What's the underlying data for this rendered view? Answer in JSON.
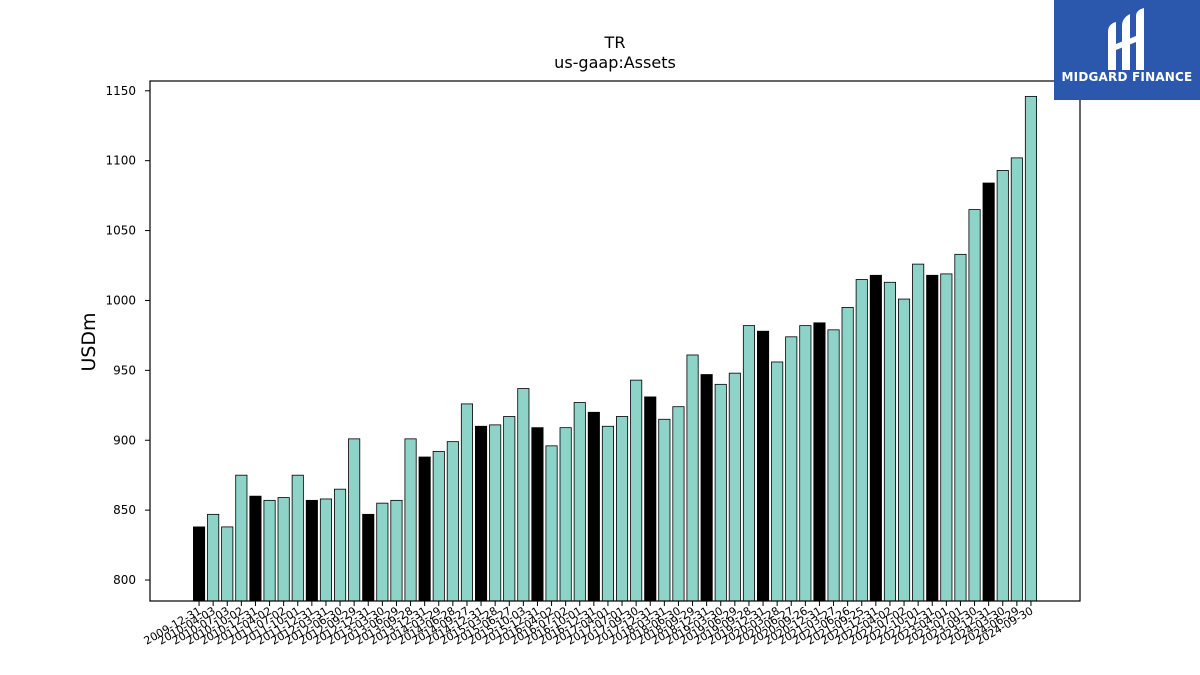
{
  "chart_data": {
    "type": "bar",
    "title": "TR",
    "subtitle": "us-gaap:Assets",
    "xlabel": "",
    "ylabel": "USDm",
    "ylim": [
      785,
      1157
    ],
    "yticks": [
      800,
      850,
      900,
      950,
      1000,
      1050,
      1100,
      1150
    ],
    "grid": false,
    "categories": [
      "2009-12-31",
      "2010-04-03",
      "2010-07-03",
      "2010-10-02",
      "2010-12-31",
      "2011-04-02",
      "2011-07-02",
      "2011-10-01",
      "2011-12-31",
      "2012-03-31",
      "2012-06-30",
      "2012-09-29",
      "2012-12-31",
      "2013-03-30",
      "2013-06-29",
      "2013-09-28",
      "2013-12-31",
      "2014-03-29",
      "2014-06-28",
      "2014-09-27",
      "2014-12-31",
      "2015-03-28",
      "2015-06-27",
      "2015-10-03",
      "2015-12-31",
      "2016-04-02",
      "2016-07-02",
      "2016-10-01",
      "2016-12-31",
      "2017-04-01",
      "2017-07-01",
      "2017-09-30",
      "2017-12-31",
      "2018-03-31",
      "2018-06-30",
      "2018-09-29",
      "2018-12-31",
      "2019-03-30",
      "2019-06-29",
      "2019-09-28",
      "2019-12-31",
      "2020-03-28",
      "2020-06-27",
      "2020-09-26",
      "2020-12-31",
      "2021-03-27",
      "2021-06-26",
      "2021-09-25",
      "2021-12-31",
      "2022-04-02",
      "2022-07-02",
      "2022-10-01",
      "2022-12-31",
      "2023-04-01",
      "2023-07-01",
      "2023-09-30",
      "2023-12-31",
      "2024-03-30",
      "2024-06-29",
      "2024-09-30"
    ],
    "tick_labels": [
      "2009-12-31",
      "2010-04-03",
      "2010-07-03",
      "2010-10-02",
      "2010-12-31",
      "2011-04-02",
      "2011-07-02",
      "2011-10-01",
      "2011-12-31",
      "2012-03-31",
      "2012-06-30",
      "2012-09-29",
      "2012-12-31",
      "2013-03-30",
      "2013-06-29",
      "2013-09-28",
      "2013-12-31",
      "2014-03-29",
      "2014-06-28",
      "2014-09-27",
      "2014-12-31",
      "2015-03-28",
      "2015-06-27",
      "2015-10-03",
      "2015-12-31",
      "2016-04-02",
      "2016-07-02",
      "2016-10-01",
      "2016-12-31",
      "2017-04-01",
      "2017-07-01",
      "2017-09-30",
      "2017-12-31",
      "2018-03-31",
      "2018-06-30",
      "2018-09-29",
      "2018-12-31",
      "2019-03-30",
      "2019-06-29",
      "2019-09-28",
      "2019-12-31",
      "2020-03-28",
      "2020-06-27",
      "2020-09-26",
      "2020-12-31",
      "2021-03-27",
      "2021-06-26",
      "2021-09-25",
      "2021-12-31",
      "2022-04-02",
      "2022-07-02",
      "2022-10-01",
      "2022-12-31",
      "2023-04-01",
      "2023-07-01",
      "2023-09-30",
      "2023-12-31",
      "2024-03-30",
      "2024-06-29",
      "2024-09-30"
    ],
    "values": [
      838,
      847,
      838,
      875,
      860,
      857,
      859,
      875,
      857,
      858,
      865,
      901,
      847,
      855,
      857,
      901,
      888,
      892,
      899,
      926,
      910,
      911,
      917,
      937,
      909,
      896,
      909,
      927,
      920,
      910,
      917,
      943,
      931,
      915,
      924,
      961,
      947,
      940,
      948,
      982,
      978,
      956,
      974,
      982,
      984,
      979,
      995,
      1015,
      1018,
      1013,
      1001,
      1026,
      1018,
      1019,
      1033,
      1065,
      1084,
      1093,
      1102,
      1146
    ],
    "year_end": [
      true,
      false,
      false,
      false,
      true,
      false,
      false,
      false,
      true,
      false,
      false,
      false,
      true,
      false,
      false,
      false,
      true,
      false,
      false,
      false,
      true,
      false,
      false,
      false,
      true,
      false,
      false,
      false,
      true,
      false,
      false,
      false,
      true,
      false,
      false,
      false,
      true,
      false,
      false,
      false,
      true,
      false,
      false,
      false,
      true,
      false,
      false,
      false,
      true,
      false,
      false,
      false,
      true,
      false,
      false,
      false,
      true,
      false,
      false,
      false
    ],
    "colors": {
      "quarter": "#8dd3c7",
      "year_end": "#000000",
      "edge": "#000000"
    }
  },
  "logo": {
    "text": "MIDGARD FINANCE",
    "color": "#2b58ad"
  }
}
